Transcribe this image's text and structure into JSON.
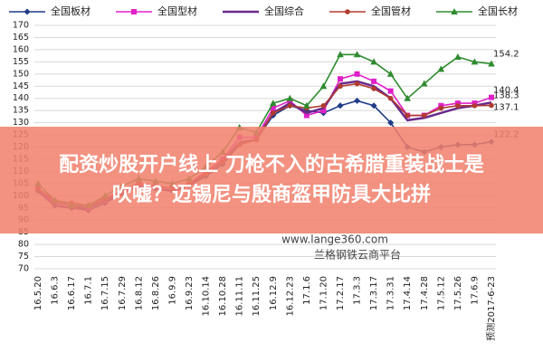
{
  "chart_data": {
    "type": "line",
    "categories": [
      "16.5.20",
      "16.6.3",
      "16.6.17",
      "16.7.1",
      "16.7.15",
      "16.7.29",
      "16.8.12",
      "16.8.26",
      "16.9.9",
      "16.9.23",
      "16.10.14",
      "16.10.28",
      "16.11.11",
      "16.11.25",
      "16.12.9",
      "16.12.23",
      "17.1.6",
      "17.1.20",
      "17.2.17",
      "17.3.3",
      "17.3.17",
      "17.3.31",
      "17.4.14",
      "17.4.28",
      "17.5.12",
      "17.5.26",
      "17.6.9",
      "预测2017-6-23"
    ],
    "series": [
      {
        "name": "全国板材",
        "color": "#1f3c88",
        "marker": "diamond",
        "values": [
          102,
          96,
          95,
          94,
          97,
          101,
          104,
          103,
          102,
          104,
          108,
          113,
          121,
          123,
          133,
          137,
          135,
          134,
          137,
          139,
          137,
          130,
          120,
          118,
          120,
          121,
          121,
          122.2
        ]
      },
      {
        "name": "全国型材",
        "color": "#e020c8",
        "marker": "square",
        "values": [
          103,
          97,
          96,
          95,
          98,
          102,
          105,
          104,
          103,
          105,
          110,
          115,
          124,
          124,
          136,
          139,
          133,
          135,
          148,
          150,
          147,
          143,
          133,
          133,
          137,
          138,
          138,
          140.4
        ]
      },
      {
        "name": "全国综合",
        "color": "#6a2a8c",
        "marker": "none",
        "values": [
          102,
          96,
          95,
          95,
          98,
          101,
          104,
          103,
          102,
          104,
          109,
          114,
          122,
          123,
          134,
          138,
          134,
          136,
          146,
          147,
          145,
          140,
          131,
          132,
          134,
          136,
          137,
          138.3
        ]
      },
      {
        "name": "全国管材",
        "color": "#b03a2e",
        "marker": "circle",
        "values": [
          103,
          98,
          97,
          96,
          99,
          102,
          105,
          104,
          103,
          105,
          109,
          114,
          121,
          123,
          134,
          137,
          136,
          137,
          145,
          146,
          144,
          140,
          133,
          133,
          136,
          137,
          137,
          137.1
        ]
      },
      {
        "name": "全国长材",
        "color": "#2e8b2e",
        "marker": "triangle",
        "values": [
          105,
          98,
          96,
          96,
          100,
          104,
          107,
          106,
          105,
          107,
          112,
          118,
          128,
          126,
          138,
          140,
          137,
          145,
          158,
          158,
          155,
          150,
          140,
          146,
          152,
          157,
          155,
          154.2
        ]
      }
    ],
    "ylim": [
      70,
      170
    ],
    "yticks": [
      70,
      75,
      80,
      85,
      90,
      95,
      100,
      105,
      110,
      115,
      120,
      125,
      130,
      135,
      140,
      145,
      150,
      155,
      160,
      165,
      170
    ],
    "grid": true,
    "legend": "top",
    "watermark": [
      "www.lange360.com",
      "兰格钢铁云商平台"
    ]
  },
  "overlay": {
    "lines": [
      "配资炒股开户线上 刀枪不入的古希腊重装战士是",
      "吹嘘？迈锡尼与殷商盔甲防具大比拼"
    ]
  }
}
